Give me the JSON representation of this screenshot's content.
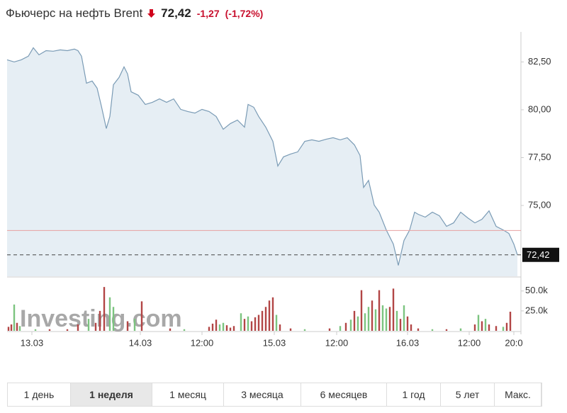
{
  "header": {
    "name": "Фьючерс на нефть Brent",
    "price": "72,42",
    "change": "-1,27",
    "change_pct": "(-1,72%)"
  },
  "ranges": {
    "labels": [
      "1 день",
      "1 неделя",
      "1 месяц",
      "3 месяца",
      "6 месяцев",
      "1 год",
      "5 лет",
      "Макс."
    ],
    "selected": 1
  },
  "chart_data": {
    "type": "area",
    "watermark": "Investing.com",
    "xlim": [
      0,
      725
    ],
    "xticks": [
      {
        "value": 35,
        "label": "13.03"
      },
      {
        "value": 188,
        "label": "14.03"
      },
      {
        "value": 275,
        "label": "12:00"
      },
      {
        "value": 377,
        "label": "15.03"
      },
      {
        "value": 465,
        "label": "12:00"
      },
      {
        "value": 565,
        "label": "16.03"
      },
      {
        "value": 652,
        "label": "12:00"
      },
      {
        "value": 715,
        "label": "20:0"
      }
    ],
    "ylim": [
      71.3,
      83.7
    ],
    "yticks": [
      {
        "value": 75,
        "label": "75,00"
      },
      {
        "value": 77.5,
        "label": "77,50"
      },
      {
        "value": 80,
        "label": "80,00"
      },
      {
        "value": 82.5,
        "label": "82,50"
      }
    ],
    "last_price": {
      "value": 72.42,
      "label": "72,42"
    },
    "previous_close": 73.69,
    "price": {
      "color": "#7a9bb5",
      "fill": "#e6eef4",
      "x": [
        0,
        10,
        20,
        30,
        37,
        45,
        55,
        65,
        75,
        85,
        95,
        100,
        105,
        112,
        120,
        127,
        133,
        140,
        145,
        150,
        158,
        165,
        170,
        175,
        185,
        195,
        205,
        215,
        225,
        235,
        245,
        255,
        265,
        275,
        285,
        295,
        305,
        315,
        325,
        335,
        340,
        348,
        355,
        365,
        375,
        382,
        390,
        400,
        410,
        420,
        430,
        440,
        450,
        460,
        470,
        480,
        490,
        498,
        503,
        510,
        518,
        525,
        535,
        545,
        552,
        560,
        568,
        575,
        580,
        590,
        600,
        610,
        620,
        630,
        640,
        650,
        660,
        670,
        680,
        690,
        700,
        708,
        715,
        720
      ],
      "values": [
        82.61,
        82.5,
        82.61,
        82.8,
        83.24,
        82.87,
        83.09,
        83.06,
        83.13,
        83.09,
        83.17,
        83.09,
        82.8,
        81.39,
        81.5,
        81.13,
        80.2,
        79.02,
        79.65,
        81.31,
        81.69,
        82.24,
        81.87,
        80.94,
        80.76,
        80.28,
        80.39,
        80.57,
        80.39,
        80.57,
        80.02,
        79.91,
        79.83,
        80.02,
        79.91,
        79.65,
        78.98,
        79.28,
        79.46,
        79.09,
        80.28,
        80.13,
        79.65,
        79.09,
        78.35,
        77.06,
        77.54,
        77.69,
        77.8,
        78.35,
        78.43,
        78.35,
        78.46,
        78.54,
        78.43,
        78.54,
        78.17,
        77.61,
        75.94,
        76.31,
        75.02,
        74.65,
        73.72,
        72.98,
        71.87,
        73.17,
        73.72,
        74.65,
        74.54,
        74.39,
        74.65,
        74.46,
        73.91,
        74.09,
        74.65,
        74.35,
        74.09,
        74.28,
        74.72,
        73.91,
        73.72,
        73.54,
        72.98,
        72.42
      ]
    },
    "volume": {
      "ylim": [
        0,
        64000
      ],
      "yticks": [
        {
          "value": 25000,
          "label": "25.0k"
        },
        {
          "value": 50000,
          "label": "50.0k"
        }
      ],
      "x": [
        2,
        6,
        10,
        14,
        18,
        40,
        60,
        85,
        100,
        115,
        125,
        131,
        137,
        145,
        150,
        170,
        180,
        190,
        230,
        250,
        285,
        290,
        295,
        300,
        305,
        310,
        315,
        320,
        330,
        335,
        340,
        345,
        350,
        355,
        360,
        365,
        370,
        375,
        380,
        385,
        400,
        420,
        455,
        470,
        478,
        485,
        490,
        495,
        500,
        505,
        510,
        515,
        520,
        525,
        530,
        535,
        540,
        545,
        550,
        555,
        560,
        565,
        570,
        580,
        600,
        620,
        640,
        660,
        665,
        670,
        675,
        680,
        690,
        700,
        705,
        710
      ],
      "values": [
        5000,
        8000,
        33000,
        10000,
        6000,
        2000,
        2000,
        2000,
        8000,
        15000,
        10000,
        25000,
        55000,
        42000,
        30000,
        12000,
        15000,
        37000,
        3000,
        2000,
        5000,
        9000,
        14000,
        8000,
        10000,
        7000,
        4000,
        6000,
        22000,
        15000,
        18000,
        12000,
        17000,
        20000,
        25000,
        30000,
        38000,
        42000,
        20000,
        8000,
        3000,
        2000,
        3000,
        6000,
        10000,
        14000,
        25000,
        18000,
        51000,
        22000,
        30000,
        38000,
        27000,
        51000,
        32000,
        28000,
        30000,
        53000,
        25000,
        15000,
        32000,
        18000,
        8000,
        3000,
        2000,
        2000,
        3000,
        8000,
        20000,
        12000,
        15000,
        8000,
        6000,
        5000,
        10000,
        24000
      ],
      "colors": [
        "#b24545",
        "#b24545",
        "#7cc47f",
        "#b24545",
        "#7cc47f",
        "#7cc47f",
        "#b24545",
        "#b24545",
        "#b24545",
        "#7cc47f",
        "#b24545",
        "#b24545",
        "#b24545",
        "#7cc47f",
        "#7cc47f",
        "#b24545",
        "#7cc47f",
        "#b24545",
        "#b24545",
        "#7cc47f",
        "#b24545",
        "#b24545",
        "#b24545",
        "#7cc47f",
        "#7cc47f",
        "#b24545",
        "#b24545",
        "#b24545",
        "#7cc47f",
        "#b24545",
        "#7cc47f",
        "#b24545",
        "#b24545",
        "#b24545",
        "#b24545",
        "#b24545",
        "#b24545",
        "#b24545",
        "#7cc47f",
        "#b24545",
        "#b24545",
        "#7cc47f",
        "#b24545",
        "#7cc47f",
        "#b24545",
        "#7cc47f",
        "#b24545",
        "#7cc47f",
        "#b24545",
        "#7cc47f",
        "#7cc47f",
        "#b24545",
        "#7cc47f",
        "#b24545",
        "#7cc47f",
        "#7cc47f",
        "#b24545",
        "#b24545",
        "#7cc47f",
        "#b24545",
        "#7cc47f",
        "#b24545",
        "#b24545",
        "#b24545",
        "#7cc47f",
        "#b24545",
        "#7cc47f",
        "#b24545",
        "#7cc47f",
        "#b24545",
        "#7cc47f",
        "#b24545",
        "#b24545",
        "#7cc47f",
        "#b24545",
        "#b24545"
      ]
    }
  }
}
